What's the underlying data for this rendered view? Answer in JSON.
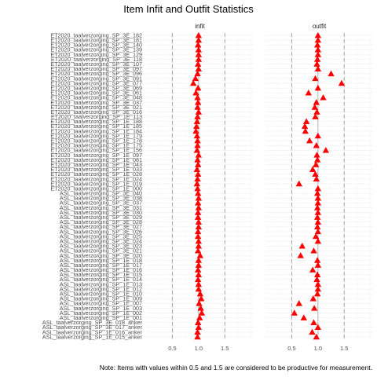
{
  "chart_data": {
    "type": "scatter",
    "title": "Item Infit and Outfit Statistics",
    "note": "Note: Items with values within 0.5 and 1.5 are considered to be productive for measurement.",
    "panels": [
      "infit",
      "outfit"
    ],
    "xticks": [
      0.5,
      1.0,
      1.5
    ],
    "xtick_labels": [
      "0.5",
      "1.0",
      "1.5"
    ],
    "xlim": [
      0,
      2.05
    ],
    "reference_lines": {
      "solid": 1.0,
      "dashed": [
        0.5,
        1.5
      ]
    },
    "marker": "triangle",
    "marker_color": "#ff0000",
    "items": [
      "ET2020_taalverzorging_SP_3E_182",
      "ET2020_taalverzorging_SP_3E_181",
      "ET2020_taalverzorging_SP_3E_140",
      "ET2020_taalverzorging_SP_3E_139",
      "ET2020_taalverzorging_SP_3E_129",
      "ET2020_taalverzorging_SP_3E_118",
      "ET2020_taalverzorging_SP_3E_107",
      "ET2020_taalverzorging_SP_3E_097",
      "ET2020_taalverzorging_SP_3E_096",
      "ET2020_taalverzorging_SP_3E_091",
      "ET2020_taalverzorging_SP_3E_077",
      "ET2020_taalverzorging_SP_3E_069",
      "ET2020_taalverzorging_SP_3E_061",
      "ET2020_taalverzorging_SP_3E_048",
      "ET2020_taalverzorging_SP_3E_037",
      "ET2020_taalverzorging_SP_3E_021",
      "ET2020_taalverzorging_SP_3E_016",
      "ET2020_taalverzorging_SP_1E_113",
      "ET2020_taalverzorging_SP_1E_188",
      "ET2020_taalverzorging_SP_1E_185",
      "ET2020_taalverzorging_SP_1E_184",
      "ET2020_taalverzorging_SP_1E_179",
      "ET2020_taalverzorging_SP_1E_178",
      "ET2020_taalverzorging_SP_1E_175",
      "ET2020_taalverzorging_SP_1E_156",
      "ET2020_taalverzorging_SP_1E_097",
      "ET2020_taalverzorging_SP_1E_081",
      "ET2020_taalverzorging_SP_1E_043",
      "ET2020_taalverzorging_SP_1E_033",
      "ET2020_taalverzorging_SP_1E_028",
      "ET2020_taalverzorging_SP_1E_024",
      "ET2020_taalverzorging_SP_1E_019",
      "ET2020_taalverzorging_SP_1E_000",
      "ASL_taalverzorging_SP_3E_040",
      "ASL_taalverzorging_SP_3E_038",
      "ASL_taalverzorging_SP_3E_037",
      "ASL_taalverzorging_SP_3E_031",
      "ASL_taalverzorging_SP_3E_030",
      "ASL_taalverzorging_SP_3E_029",
      "ASL_taalverzorging_SP_3E_028",
      "ASL_taalverzorging_SP_3E_027",
      "ASL_taalverzorging_SP_3E_026",
      "ASL_taalverzorging_SP_3E_025",
      "ASL_taalverzorging_SP_3E_024",
      "ASL_taalverzorging_SP_3E_023",
      "ASL_taalverzorging_SP_3E_021",
      "ASL_taalverzorging_SP_3E_020",
      "ASL_taalverzorging_SP_1E_018",
      "ASL_taalverzorging_SP_1E_017",
      "ASL_taalverzorging_SP_1E_016",
      "ASL_taalverzorging_SP_1E_015",
      "ASL_taalverzorging_SP_1E_014",
      "ASL_taalverzorging_SP_1E_013",
      "ASL_taalverzorging_SP_1E_012",
      "ASL_taalverzorging_SP_1E_010",
      "ASL_taalverzorging_SP_1E_009",
      "ASL_taalverzorging_SP_1E_007",
      "ASL_taalverzorging_SP_1E_003",
      "ASL_taalverzorging_SP_1E_002",
      "ASL_taalverzorging_SP_1E_001",
      "ASL_taalverzorging_SP_3E_018_anker",
      "ASL_taalverzorging_SP_3E_017_anker",
      "ASL_taalverzorging_SP_1E_016_anker",
      "ASL_taalverzorging_SP_1E_015_anker"
    ],
    "series": [
      {
        "name": "infit",
        "values": [
          1.0,
          1.0,
          0.99,
          1.0,
          1.0,
          1.0,
          0.99,
          1.0,
          0.98,
          0.94,
          0.9,
          0.99,
          0.95,
          0.98,
          0.99,
          0.98,
          1.0,
          0.98,
          0.97,
          0.96,
          0.95,
          0.97,
          0.98,
          0.98,
          0.97,
          1.0,
          0.98,
          0.99,
          0.97,
          0.99,
          0.98,
          0.97,
          0.98,
          0.99,
          1.0,
          0.99,
          1.0,
          0.99,
          0.99,
          1.0,
          1.0,
          0.99,
          0.99,
          1.0,
          1.0,
          0.99,
          1.03,
          1.0,
          1.0,
          0.99,
          1.0,
          0.99,
          1.0,
          1.0,
          1.03,
          1.05,
          1.01,
          1.04,
          1.06,
          1.02,
          0.99,
          1.0,
          0.98,
          0.98
        ]
      },
      {
        "name": "outfit",
        "values": [
          1.0,
          1.0,
          0.99,
          1.0,
          1.0,
          0.99,
          0.98,
          1.0,
          1.25,
          0.95,
          1.45,
          1.0,
          0.82,
          1.1,
          0.97,
          0.94,
          0.98,
          0.95,
          0.78,
          0.75,
          0.76,
          1.0,
          0.84,
          0.97,
          1.15,
          0.98,
          0.99,
          0.96,
          0.9,
          0.95,
          0.97,
          0.64,
          1.0,
          0.99,
          1.0,
          1.0,
          0.99,
          1.0,
          0.99,
          1.0,
          0.99,
          1.0,
          0.96,
          1.0,
          0.7,
          0.92,
          0.67,
          0.99,
          1.0,
          0.9,
          0.99,
          0.98,
          1.0,
          1.0,
          0.99,
          0.91,
          0.64,
          0.93,
          0.55,
          0.73,
          0.92,
          1.0,
          0.89,
          0.97
        ]
      }
    ]
  }
}
